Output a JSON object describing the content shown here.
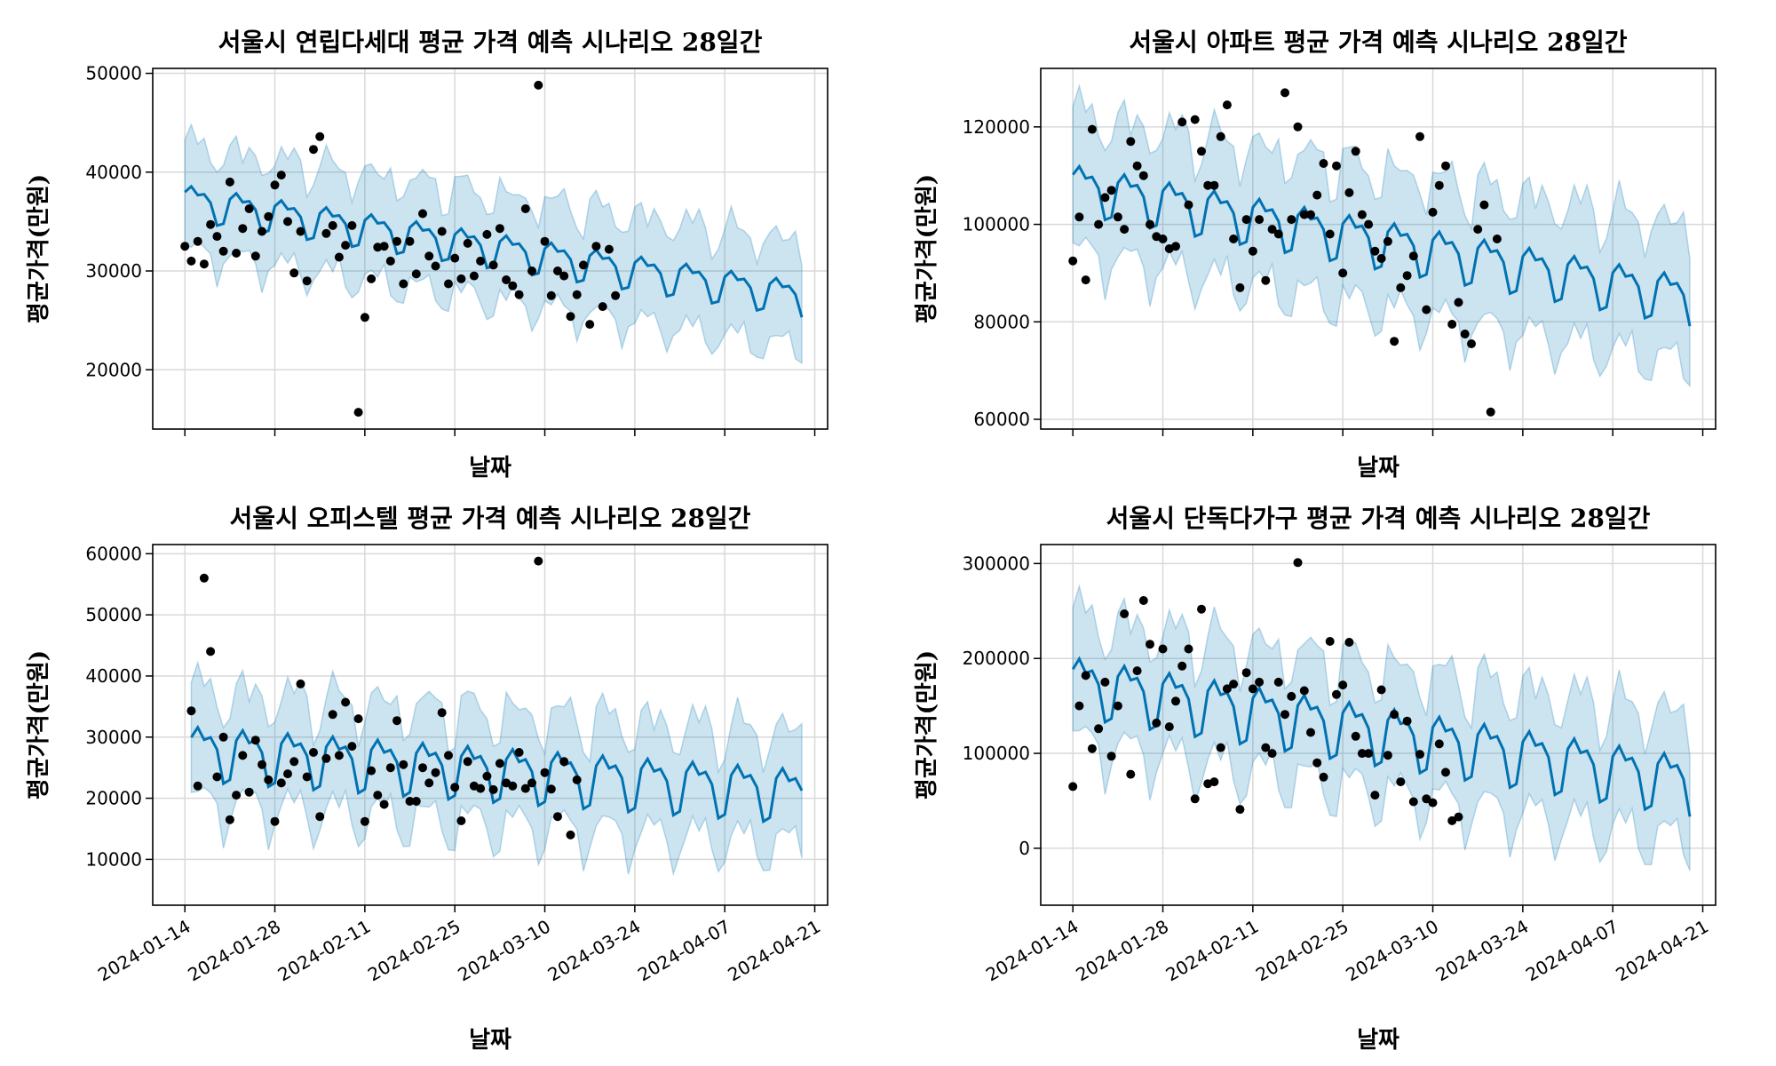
{
  "colors": {
    "forecast_line": "#0072B2",
    "interval_fill": "#0072B2",
    "points": "#000000",
    "grid": "#d9d9d9"
  },
  "chart_data": [
    {
      "type": "line",
      "title": "서울시 연립다세대 평균 가격 예측 시나리오 28일간",
      "xlabel": "날짜",
      "ylabel": "평균가격(만원)",
      "x_ticks": [
        "2024-01-14",
        "2024-01-28",
        "2024-02-11",
        "2024-02-25",
        "2024-03-10",
        "2024-03-24",
        "2024-04-07",
        "2024-04-21"
      ],
      "x_tick_labels_visible": false,
      "y_ticks": [
        20000,
        30000,
        40000,
        50000
      ],
      "xlim": [
        "2024-01-09",
        "2024-04-23"
      ],
      "ylim": [
        14000,
        50500
      ],
      "grid": true,
      "forecast": {
        "start": "2024-01-14",
        "end": "2024-04-19",
        "trend": [
          37200,
          27400
        ],
        "amplitude": 1600,
        "interval_halfwidth": 5300
      },
      "actual_points": [
        [
          "2024-01-14",
          32500
        ],
        [
          "2024-01-15",
          31000
        ],
        [
          "2024-01-16",
          33000
        ],
        [
          "2024-01-17",
          30700
        ],
        [
          "2024-01-18",
          34700
        ],
        [
          "2024-01-19",
          33500
        ],
        [
          "2024-01-20",
          32000
        ],
        [
          "2024-01-21",
          39000
        ],
        [
          "2024-01-22",
          31800
        ],
        [
          "2024-01-23",
          34300
        ],
        [
          "2024-01-24",
          36300
        ],
        [
          "2024-01-25",
          31500
        ],
        [
          "2024-01-26",
          34000
        ],
        [
          "2024-01-27",
          35500
        ],
        [
          "2024-01-28",
          38700
        ],
        [
          "2024-01-29",
          39700
        ],
        [
          "2024-01-30",
          35000
        ],
        [
          "2024-01-31",
          29800
        ],
        [
          "2024-02-01",
          34000
        ],
        [
          "2024-02-02",
          29000
        ],
        [
          "2024-02-03",
          42300
        ],
        [
          "2024-02-04",
          43600
        ],
        [
          "2024-02-05",
          33800
        ],
        [
          "2024-02-06",
          34600
        ],
        [
          "2024-02-07",
          31400
        ],
        [
          "2024-02-08",
          32600
        ],
        [
          "2024-02-09",
          34600
        ],
        [
          "2024-02-10",
          15700
        ],
        [
          "2024-02-11",
          25300
        ],
        [
          "2024-02-12",
          29200
        ],
        [
          "2024-02-13",
          32400
        ],
        [
          "2024-02-14",
          32500
        ],
        [
          "2024-02-15",
          31000
        ],
        [
          "2024-02-16",
          33000
        ],
        [
          "2024-02-17",
          28700
        ],
        [
          "2024-02-18",
          33000
        ],
        [
          "2024-02-19",
          29700
        ],
        [
          "2024-02-20",
          35800
        ],
        [
          "2024-02-21",
          31500
        ],
        [
          "2024-02-22",
          30500
        ],
        [
          "2024-02-23",
          34000
        ],
        [
          "2024-02-24",
          28700
        ],
        [
          "2024-02-25",
          31300
        ],
        [
          "2024-02-26",
          29200
        ],
        [
          "2024-02-27",
          32800
        ],
        [
          "2024-02-28",
          29500
        ],
        [
          "2024-02-29",
          31000
        ],
        [
          "2024-03-01",
          33700
        ],
        [
          "2024-03-02",
          30600
        ],
        [
          "2024-03-03",
          34300
        ],
        [
          "2024-03-04",
          29100
        ],
        [
          "2024-03-05",
          28500
        ],
        [
          "2024-03-06",
          27600
        ],
        [
          "2024-03-07",
          36300
        ],
        [
          "2024-03-08",
          30000
        ],
        [
          "2024-03-09",
          48800
        ],
        [
          "2024-03-10",
          33000
        ],
        [
          "2024-03-11",
          27500
        ],
        [
          "2024-03-12",
          30000
        ],
        [
          "2024-03-13",
          29500
        ],
        [
          "2024-03-14",
          25400
        ],
        [
          "2024-03-15",
          27600
        ],
        [
          "2024-03-16",
          30600
        ],
        [
          "2024-03-17",
          24600
        ],
        [
          "2024-03-18",
          32500
        ],
        [
          "2024-03-19",
          26400
        ],
        [
          "2024-03-20",
          32200
        ],
        [
          "2024-03-21",
          27500
        ]
      ]
    },
    {
      "type": "line",
      "title": "서울시 아파트 평균 가격 예측 시나리오 28일간",
      "xlabel": "날짜",
      "ylabel": "평균가격(만원)",
      "x_ticks": [
        "2024-01-14",
        "2024-01-28",
        "2024-02-11",
        "2024-02-25",
        "2024-03-10",
        "2024-03-24",
        "2024-04-07",
        "2024-04-21"
      ],
      "x_tick_labels_visible": false,
      "y_ticks": [
        60000,
        80000,
        100000,
        120000
      ],
      "xlim": [
        "2024-01-09",
        "2024-04-23"
      ],
      "ylim": [
        58000,
        132000
      ],
      "grid": true,
      "forecast": {
        "start": "2024-01-14",
        "end": "2024-04-19",
        "trend": [
          108000,
          85000
        ],
        "amplitude": 4500,
        "interval_halfwidth": 14000
      },
      "actual_points": [
        [
          "2024-01-14",
          92500
        ],
        [
          "2024-01-15",
          101500
        ],
        [
          "2024-01-16",
          88600
        ],
        [
          "2024-01-17",
          119500
        ],
        [
          "2024-01-18",
          100000
        ],
        [
          "2024-01-19",
          105500
        ],
        [
          "2024-01-20",
          107000
        ],
        [
          "2024-01-21",
          101500
        ],
        [
          "2024-01-22",
          99000
        ],
        [
          "2024-01-23",
          117000
        ],
        [
          "2024-01-24",
          112000
        ],
        [
          "2024-01-25",
          110000
        ],
        [
          "2024-01-26",
          100000
        ],
        [
          "2024-01-27",
          97500
        ],
        [
          "2024-01-28",
          97000
        ],
        [
          "2024-01-29",
          95000
        ],
        [
          "2024-01-30",
          95500
        ],
        [
          "2024-01-31",
          121000
        ],
        [
          "2024-02-01",
          104000
        ],
        [
          "2024-02-02",
          121500
        ],
        [
          "2024-02-03",
          115000
        ],
        [
          "2024-02-04",
          108000
        ],
        [
          "2024-02-05",
          108000
        ],
        [
          "2024-02-06",
          118000
        ],
        [
          "2024-02-07",
          124500
        ],
        [
          "2024-02-08",
          97000
        ],
        [
          "2024-02-09",
          87000
        ],
        [
          "2024-02-10",
          101000
        ],
        [
          "2024-02-11",
          94500
        ],
        [
          "2024-02-12",
          101000
        ],
        [
          "2024-02-13",
          88500
        ],
        [
          "2024-02-14",
          99000
        ],
        [
          "2024-02-15",
          98000
        ],
        [
          "2024-02-16",
          127000
        ],
        [
          "2024-02-17",
          101000
        ],
        [
          "2024-02-18",
          120000
        ],
        [
          "2024-02-19",
          102000
        ],
        [
          "2024-02-20",
          102000
        ],
        [
          "2024-02-21",
          106000
        ],
        [
          "2024-02-22",
          112500
        ],
        [
          "2024-02-23",
          98000
        ],
        [
          "2024-02-24",
          112000
        ],
        [
          "2024-02-25",
          90000
        ],
        [
          "2024-02-26",
          106500
        ],
        [
          "2024-02-27",
          115000
        ],
        [
          "2024-02-28",
          102000
        ],
        [
          "2024-02-29",
          100000
        ],
        [
          "2024-03-01",
          94500
        ],
        [
          "2024-03-02",
          93000
        ],
        [
          "2024-03-03",
          96500
        ],
        [
          "2024-03-04",
          76000
        ],
        [
          "2024-03-05",
          87000
        ],
        [
          "2024-03-06",
          89500
        ],
        [
          "2024-03-07",
          93500
        ],
        [
          "2024-03-08",
          118000
        ],
        [
          "2024-03-09",
          82500
        ],
        [
          "2024-03-10",
          102500
        ],
        [
          "2024-03-11",
          108000
        ],
        [
          "2024-03-12",
          112000
        ],
        [
          "2024-03-13",
          79500
        ],
        [
          "2024-03-14",
          84000
        ],
        [
          "2024-03-15",
          77500
        ],
        [
          "2024-03-16",
          75500
        ],
        [
          "2024-03-17",
          99000
        ],
        [
          "2024-03-18",
          104000
        ],
        [
          "2024-03-19",
          61500
        ],
        [
          "2024-03-20",
          97000
        ]
      ]
    },
    {
      "type": "line",
      "title": "서울시 오피스텔 평균 가격 예측 시나리오 28일간",
      "xlabel": "날짜",
      "ylabel": "평균가격(만원)",
      "x_ticks": [
        "2024-01-14",
        "2024-01-28",
        "2024-02-11",
        "2024-02-25",
        "2024-03-10",
        "2024-03-24",
        "2024-04-07",
        "2024-04-21"
      ],
      "x_tick_labels_visible": true,
      "y_ticks": [
        10000,
        20000,
        30000,
        40000,
        50000,
        60000
      ],
      "xlim": [
        "2024-01-09",
        "2024-04-23"
      ],
      "ylim": [
        2500,
        61500
      ],
      "grid": true,
      "forecast": {
        "start": "2024-01-15",
        "end": "2024-04-19",
        "trend": [
          28000,
          21000
        ],
        "amplitude": 4000,
        "interval_halfwidth": 9000
      },
      "actual_points": [
        [
          "2024-01-15",
          34300
        ],
        [
          "2024-01-16",
          22000
        ],
        [
          "2024-01-17",
          56000
        ],
        [
          "2024-01-18",
          44000
        ],
        [
          "2024-01-19",
          23500
        ],
        [
          "2024-01-20",
          30000
        ],
        [
          "2024-01-21",
          16500
        ],
        [
          "2024-01-22",
          20500
        ],
        [
          "2024-01-23",
          27000
        ],
        [
          "2024-01-24",
          21000
        ],
        [
          "2024-01-25",
          29500
        ],
        [
          "2024-01-26",
          25500
        ],
        [
          "2024-01-27",
          23000
        ],
        [
          "2024-01-28",
          16200
        ],
        [
          "2024-01-29",
          22500
        ],
        [
          "2024-01-30",
          24000
        ],
        [
          "2024-01-31",
          26000
        ],
        [
          "2024-02-01",
          38700
        ],
        [
          "2024-02-02",
          23500
        ],
        [
          "2024-02-03",
          27500
        ],
        [
          "2024-02-04",
          17000
        ],
        [
          "2024-02-05",
          26500
        ],
        [
          "2024-02-06",
          33700
        ],
        [
          "2024-02-07",
          27000
        ],
        [
          "2024-02-08",
          35700
        ],
        [
          "2024-02-09",
          28500
        ],
        [
          "2024-02-10",
          33000
        ],
        [
          "2024-02-11",
          16200
        ],
        [
          "2024-02-12",
          24500
        ],
        [
          "2024-02-13",
          20500
        ],
        [
          "2024-02-14",
          19000
        ],
        [
          "2024-02-15",
          25000
        ],
        [
          "2024-02-16",
          32700
        ],
        [
          "2024-02-17",
          25500
        ],
        [
          "2024-02-18",
          19500
        ],
        [
          "2024-02-19",
          19500
        ],
        [
          "2024-02-20",
          25000
        ],
        [
          "2024-02-21",
          22500
        ],
        [
          "2024-02-22",
          24200
        ],
        [
          "2024-02-23",
          34000
        ],
        [
          "2024-02-24",
          27000
        ],
        [
          "2024-02-25",
          21800
        ],
        [
          "2024-02-26",
          16300
        ],
        [
          "2024-02-27",
          26000
        ],
        [
          "2024-02-28",
          22000
        ],
        [
          "2024-02-29",
          21600
        ],
        [
          "2024-03-01",
          23600
        ],
        [
          "2024-03-02",
          21400
        ],
        [
          "2024-03-03",
          25700
        ],
        [
          "2024-03-04",
          22500
        ],
        [
          "2024-03-05",
          22000
        ],
        [
          "2024-03-06",
          27500
        ],
        [
          "2024-03-07",
          21600
        ],
        [
          "2024-03-08",
          22500
        ],
        [
          "2024-03-09",
          58800
        ],
        [
          "2024-03-10",
          24200
        ],
        [
          "2024-03-11",
          21500
        ],
        [
          "2024-03-12",
          17000
        ],
        [
          "2024-03-13",
          26000
        ],
        [
          "2024-03-14",
          14000
        ],
        [
          "2024-03-15",
          23000
        ]
      ]
    },
    {
      "type": "line",
      "title": "서울시 단독다가구 평균 가격 예측 시나리오 28일간",
      "xlabel": "날짜",
      "ylabel": "평균가격(만원)",
      "x_ticks": [
        "2024-01-14",
        "2024-01-28",
        "2024-02-11",
        "2024-02-25",
        "2024-03-10",
        "2024-03-24",
        "2024-04-07",
        "2024-04-21"
      ],
      "x_tick_labels_visible": true,
      "y_ticks": [
        0,
        100000,
        200000,
        300000
      ],
      "xlim": [
        "2024-01-09",
        "2024-04-23"
      ],
      "ylim": [
        -60000,
        320000
      ],
      "grid": true,
      "forecast": {
        "start": "2024-01-14",
        "end": "2024-04-19",
        "trend": [
          175000,
          70000
        ],
        "amplitude": 28000,
        "interval_halfwidth": 65000
      },
      "actual_points": [
        [
          "2024-01-14",
          65000
        ],
        [
          "2024-01-15",
          150000
        ],
        [
          "2024-01-16",
          182000
        ],
        [
          "2024-01-17",
          105000
        ],
        [
          "2024-01-18",
          126000
        ],
        [
          "2024-01-19",
          175000
        ],
        [
          "2024-01-20",
          97000
        ],
        [
          "2024-01-21",
          150000
        ],
        [
          "2024-01-22",
          247000
        ],
        [
          "2024-01-23",
          78000
        ],
        [
          "2024-01-24",
          187000
        ],
        [
          "2024-01-25",
          261000
        ],
        [
          "2024-01-26",
          215000
        ],
        [
          "2024-01-27",
          132000
        ],
        [
          "2024-01-28",
          210000
        ],
        [
          "2024-01-29",
          128000
        ],
        [
          "2024-01-30",
          155000
        ],
        [
          "2024-01-31",
          192000
        ],
        [
          "2024-02-01",
          210000
        ],
        [
          "2024-02-02",
          52000
        ],
        [
          "2024-02-03",
          252000
        ],
        [
          "2024-02-04",
          68000
        ],
        [
          "2024-02-05",
          70000
        ],
        [
          "2024-02-06",
          106000
        ],
        [
          "2024-02-07",
          168000
        ],
        [
          "2024-02-08",
          173000
        ],
        [
          "2024-02-09",
          41000
        ],
        [
          "2024-02-10",
          185000
        ],
        [
          "2024-02-11",
          168000
        ],
        [
          "2024-02-12",
          175000
        ],
        [
          "2024-02-13",
          106000
        ],
        [
          "2024-02-14",
          100000
        ],
        [
          "2024-02-15",
          175000
        ],
        [
          "2024-02-16",
          141000
        ],
        [
          "2024-02-17",
          160000
        ],
        [
          "2024-02-18",
          301000
        ],
        [
          "2024-02-19",
          166000
        ],
        [
          "2024-02-20",
          122000
        ],
        [
          "2024-02-21",
          90000
        ],
        [
          "2024-02-22",
          75000
        ],
        [
          "2024-02-23",
          218000
        ],
        [
          "2024-02-24",
          162000
        ],
        [
          "2024-02-25",
          172000
        ],
        [
          "2024-02-26",
          217000
        ],
        [
          "2024-02-27",
          118000
        ],
        [
          "2024-02-28",
          100000
        ],
        [
          "2024-02-29",
          100000
        ],
        [
          "2024-03-01",
          56000
        ],
        [
          "2024-03-02",
          167000
        ],
        [
          "2024-03-03",
          98000
        ],
        [
          "2024-03-04",
          141000
        ],
        [
          "2024-03-05",
          70000
        ],
        [
          "2024-03-06",
          134000
        ],
        [
          "2024-03-07",
          49000
        ],
        [
          "2024-03-08",
          99000
        ],
        [
          "2024-03-09",
          52000
        ],
        [
          "2024-03-10",
          48000
        ],
        [
          "2024-03-11",
          110000
        ],
        [
          "2024-03-12",
          80000
        ],
        [
          "2024-03-13",
          29000
        ],
        [
          "2024-03-14",
          33000
        ]
      ]
    }
  ]
}
